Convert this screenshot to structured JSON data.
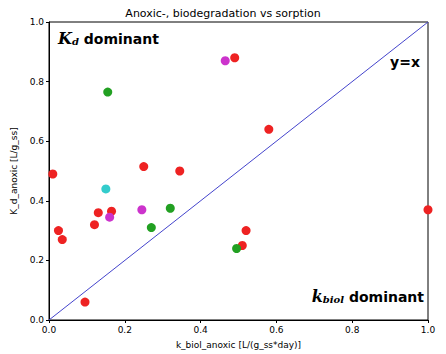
{
  "chart_data": {
    "type": "scatter",
    "title": "Anoxic-, biodegradation vs sorption",
    "x_label": "k_biol_anoxic [L/(g_ss*day)]",
    "y_label": "K_d_anoxic [L/g_ss]",
    "xlim": [
      0,
      1
    ],
    "ylim": [
      0,
      1
    ],
    "xticks": [
      {
        "value": 0,
        "label": "0.0"
      },
      0.2,
      0.4,
      0.6,
      0.8,
      {
        "value": 1,
        "label": "1.0"
      }
    ],
    "yticks": [
      {
        "value": 0,
        "label": "0.0"
      },
      0.2,
      0.4,
      0.6,
      0.8,
      {
        "value": 1,
        "label": "1.0"
      }
    ],
    "grid": false,
    "series": [
      {
        "type": "scatter",
        "color": "#ee2222",
        "marker": "circle",
        "x": [
          0.01,
          0.025,
          0.035,
          0.095,
          0.12,
          0.13,
          0.165,
          0.25,
          0.345,
          0.49,
          0.51,
          0.52,
          0.58,
          1.0
        ],
        "values": [
          0.49,
          0.3,
          0.27,
          0.06,
          0.32,
          0.36,
          0.365,
          0.515,
          0.5,
          0.88,
          0.25,
          0.3,
          0.64,
          0.37
        ]
      },
      {
        "type": "scatter",
        "color": "#22a022",
        "marker": "circle",
        "x": [
          0.155,
          0.27,
          0.32,
          0.495
        ],
        "values": [
          0.765,
          0.31,
          0.375,
          0.24
        ]
      },
      {
        "type": "scatter",
        "color": "#cc33cc",
        "marker": "circle",
        "x": [
          0.16,
          0.245,
          0.465
        ],
        "values": [
          0.345,
          0.37,
          0.87
        ]
      },
      {
        "type": "scatter",
        "color": "#33cccc",
        "marker": "circle",
        "x": [
          0.15
        ],
        "values": [
          0.44
        ]
      },
      {
        "type": "line",
        "color": "#4444cc",
        "line_style": "solid",
        "x": [
          0,
          1
        ],
        "values": [
          0,
          1
        ]
      }
    ],
    "annotations": [
      {
        "symbol": "K",
        "subscript": "d",
        "text": " dominant"
      },
      {
        "symbol": "k",
        "subscript": "biol",
        "text": " dominant"
      },
      {
        "text": "y=x"
      }
    ]
  }
}
